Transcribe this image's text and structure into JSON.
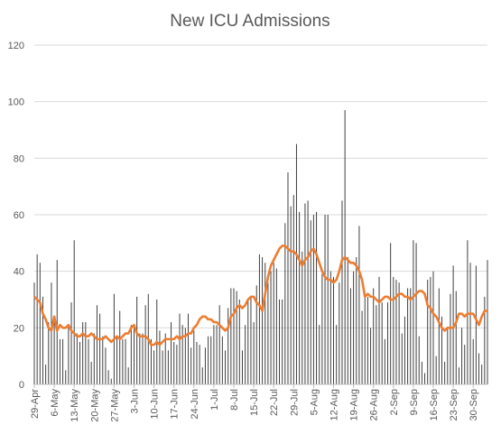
{
  "chart_data": {
    "type": "bar",
    "title": "New ICU Admissions",
    "xlabel": "",
    "ylabel": "",
    "ylim": [
      0,
      120
    ],
    "yticks": [
      0,
      20,
      40,
      60,
      80,
      100,
      120
    ],
    "grid": true,
    "legend": "none",
    "x_start": "2020-04-29",
    "x_end": "2020-09-30",
    "x_tick_labels": [
      "29-Apr",
      "6-May",
      "13-May",
      "20-May",
      "27-May",
      "3-Jun",
      "10-Jun",
      "17-Jun",
      "24-Jun",
      "1-Jul",
      "8-Jul",
      "15-Jul",
      "22-Jul",
      "29-Jul",
      "5-Aug",
      "12-Aug",
      "19-Aug",
      "26-Aug",
      "2-Sep",
      "9-Sep",
      "16-Sep",
      "23-Sep",
      "30-Sep"
    ],
    "series": [
      {
        "name": "",
        "type": "bar",
        "color": "#404040",
        "values": [
          36,
          46,
          43,
          31,
          7,
          22,
          36,
          24,
          44,
          16,
          16,
          5,
          21,
          29,
          51,
          18,
          15,
          22,
          22,
          16,
          8,
          18,
          28,
          25,
          17,
          13,
          5,
          2,
          32,
          17,
          26,
          16,
          16,
          6,
          21,
          20,
          31,
          18,
          18,
          28,
          32,
          16,
          12,
          30,
          19,
          12,
          18,
          12,
          22,
          15,
          14,
          25,
          21,
          20,
          25,
          13,
          19,
          15,
          14,
          6,
          13,
          17,
          17,
          21,
          21,
          28,
          17,
          12,
          27,
          34,
          34,
          33,
          30,
          12,
          21,
          30,
          31,
          22,
          35,
          46,
          45,
          43,
          36,
          40,
          43,
          41,
          30,
          30,
          57,
          75,
          63,
          67,
          85,
          61,
          47,
          64,
          65,
          58,
          60,
          61,
          21,
          39,
          60,
          60,
          40,
          38,
          21,
          36,
          65,
          97,
          45,
          34,
          40,
          45,
          56,
          26,
          31,
          31,
          20,
          34,
          28,
          38,
          29,
          16,
          29,
          50,
          38,
          37,
          36,
          18,
          24,
          34,
          34,
          51,
          50,
          17,
          8,
          4,
          37,
          38,
          40,
          10,
          34,
          24,
          8,
          20,
          32,
          42,
          33,
          6,
          20,
          14,
          51,
          43,
          16,
          42,
          11,
          7,
          31,
          44
        ]
      },
      {
        "name": "",
        "type": "line",
        "color": "#ed7d31",
        "values": [
          31,
          30,
          29,
          25,
          23,
          20,
          19,
          24,
          19,
          21,
          20,
          20,
          21,
          19,
          18,
          17,
          17,
          18,
          17,
          17,
          18,
          17,
          16,
          16,
          16,
          17,
          16,
          15,
          16,
          17,
          16,
          17,
          18,
          18,
          20,
          21,
          18,
          17,
          17,
          17,
          16,
          14,
          14,
          15,
          14,
          15,
          16,
          16,
          16,
          16,
          17,
          16,
          17,
          17,
          18,
          18,
          20,
          21,
          23,
          24,
          24,
          23,
          23,
          22,
          22,
          21,
          20,
          19,
          20,
          24,
          25,
          27,
          28,
          27,
          28,
          30,
          31,
          31,
          29,
          28,
          26,
          32,
          38,
          42,
          44,
          46,
          48,
          49,
          49,
          48,
          47,
          47,
          46,
          44,
          42,
          44,
          45,
          47,
          48,
          46,
          43,
          40,
          38,
          37,
          37,
          36,
          37,
          40,
          44,
          45,
          44,
          43,
          43,
          42,
          40,
          37,
          31,
          32,
          31,
          31,
          30,
          29,
          30,
          31,
          31,
          30,
          30,
          31,
          32,
          32,
          31,
          31,
          30,
          31,
          32,
          33,
          33,
          32,
          28,
          27,
          25,
          24,
          22,
          20,
          19,
          20,
          20,
          20,
          22,
          25,
          25,
          24,
          25,
          25,
          25,
          23,
          21,
          24,
          26,
          26
        ]
      }
    ]
  }
}
